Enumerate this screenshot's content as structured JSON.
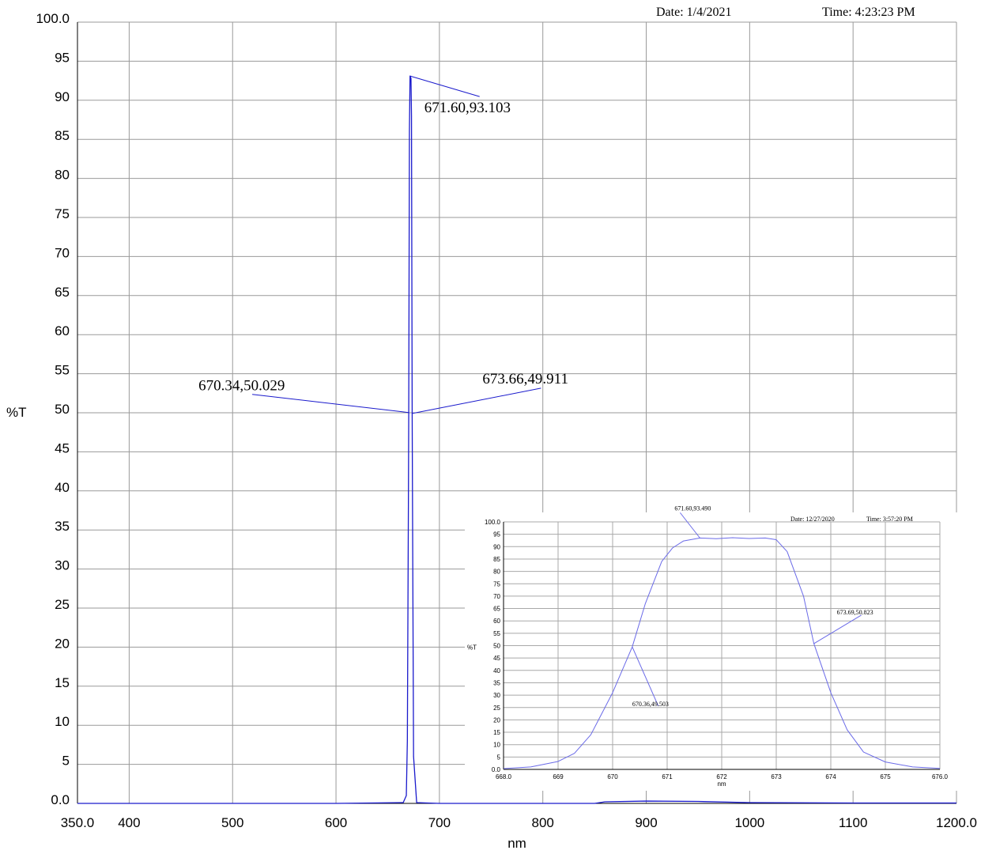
{
  "header": {
    "date": "Date: 1/4/2021",
    "time": "Time: 4:23:23 PM"
  },
  "chart_data": [
    {
      "type": "line",
      "xlabel": "nm",
      "ylabel": "%T",
      "xlim": [
        350,
        1200
      ],
      "ylim": [
        0,
        100
      ],
      "x_ticks": [
        "350.0",
        "400",
        "500",
        "600",
        "700",
        "800",
        "900",
        "1000",
        "1100",
        "1200.0"
      ],
      "x_tick_values": [
        350,
        400,
        500,
        600,
        700,
        800,
        900,
        1000,
        1100,
        1200
      ],
      "y_ticks": [
        "0.0",
        "5",
        "10",
        "15",
        "20",
        "25",
        "30",
        "35",
        "40",
        "45",
        "50",
        "55",
        "60",
        "65",
        "70",
        "75",
        "80",
        "85",
        "90",
        "95",
        "100.0"
      ],
      "y_tick_values": [
        0,
        5,
        10,
        15,
        20,
        25,
        30,
        35,
        40,
        45,
        50,
        55,
        60,
        65,
        70,
        75,
        80,
        85,
        90,
        95,
        100
      ],
      "grid": true,
      "line_color": "#1a1acc",
      "series": [
        {
          "x": [
            350,
            600,
            665,
            668,
            669,
            670,
            670.34,
            671,
            671.6,
            672.5,
            673,
            673.66,
            674,
            675,
            678,
            700,
            850,
            860,
            900,
            950,
            1000,
            1100,
            1200
          ],
          "y": [
            0,
            0,
            0.1,
            1,
            8,
            38,
            50.029,
            86,
            93.103,
            92.8,
            88,
            49.911,
            38,
            6,
            0.1,
            0,
            0,
            0.2,
            0.3,
            0.25,
            0.1,
            0.05,
            0.05
          ]
        }
      ],
      "annotations": [
        {
          "text": "671.60,93.103",
          "x": 671.6,
          "y": 93.103
        },
        {
          "text": "670.34,50.029",
          "x": 670.34,
          "y": 50.029
        },
        {
          "text": "673.66,49.911",
          "x": 673.66,
          "y": 49.911
        }
      ]
    },
    {
      "type": "line",
      "header": {
        "date": "Date: 12/27/2020",
        "time": "Time: 3:57:20 PM"
      },
      "xlabel": "nm",
      "ylabel": "%T",
      "xlim": [
        668,
        676
      ],
      "ylim": [
        0,
        100
      ],
      "x_ticks": [
        "668.0",
        "669",
        "670",
        "671",
        "672",
        "673",
        "674",
        "675",
        "676.0"
      ],
      "x_tick_values": [
        668,
        669,
        670,
        671,
        672,
        673,
        674,
        675,
        676
      ],
      "y_ticks": [
        "0.0",
        "5",
        "10",
        "15",
        "20",
        "25",
        "30",
        "35",
        "40",
        "45",
        "50",
        "55",
        "60",
        "65",
        "70",
        "75",
        "80",
        "85",
        "90",
        "95",
        "100.0"
      ],
      "y_tick_values": [
        0,
        5,
        10,
        15,
        20,
        25,
        30,
        35,
        40,
        45,
        50,
        55,
        60,
        65,
        70,
        75,
        80,
        85,
        90,
        95,
        100
      ],
      "grid": true,
      "line_color": "#6a6ae8",
      "series": [
        {
          "x": [
            668.0,
            668.5,
            669.0,
            669.3,
            669.6,
            670.0,
            670.36,
            670.6,
            670.9,
            671.1,
            671.3,
            671.6,
            671.9,
            672.2,
            672.5,
            672.8,
            673.0,
            673.2,
            673.5,
            673.69,
            674.0,
            674.3,
            674.6,
            675.0,
            675.5,
            676.0
          ],
          "y": [
            0.3,
            1.0,
            3.2,
            6.5,
            14,
            31,
            49.503,
            67,
            84,
            89.5,
            92.3,
            93.49,
            93.2,
            93.6,
            93.3,
            93.5,
            92.8,
            88,
            70,
            50.823,
            31,
            16,
            7,
            3,
            1,
            0.4
          ]
        }
      ],
      "annotations": [
        {
          "text": "671.60,93.490",
          "x": 671.6,
          "y": 93.49
        },
        {
          "text": "670.36,49.503",
          "x": 670.36,
          "y": 49.503
        },
        {
          "text": "673.69,50.823",
          "x": 673.69,
          "y": 50.823
        }
      ]
    }
  ]
}
